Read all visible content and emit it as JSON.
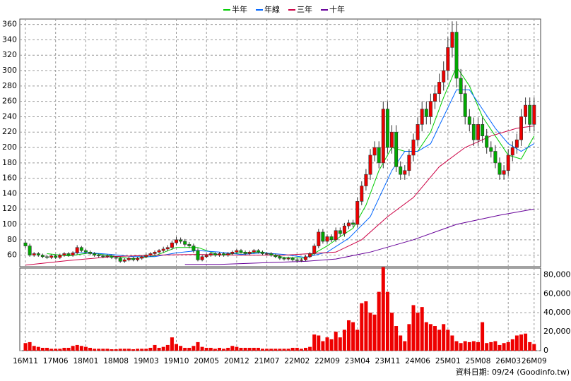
{
  "chart_data": {
    "type": "candlestick",
    "legend_position": "top",
    "grid": true,
    "categories": [
      "16M11",
      null,
      null,
      null,
      null,
      null,
      null,
      "17M06",
      null,
      null,
      null,
      null,
      null,
      null,
      "18M01",
      null,
      null,
      null,
      null,
      null,
      null,
      "18M08",
      null,
      null,
      null,
      null,
      null,
      null,
      "19M03",
      null,
      null,
      null,
      null,
      null,
      null,
      "19M10",
      null,
      null,
      null,
      null,
      null,
      null,
      "20M05",
      null,
      null,
      null,
      null,
      null,
      null,
      "20M12",
      null,
      null,
      null,
      null,
      null,
      null,
      "21M07",
      null,
      null,
      null,
      null,
      null,
      null,
      "22M02",
      null,
      null,
      null,
      null,
      null,
      null,
      "22M09",
      null,
      null,
      null,
      null,
      null,
      null,
      "23M04",
      null,
      null,
      null,
      null,
      null,
      null,
      "23M11",
      null,
      null,
      null,
      null,
      null,
      null,
      "24M06",
      null,
      null,
      null,
      null,
      null,
      null,
      "25M01",
      null,
      null,
      null,
      null,
      null,
      null,
      "25M08",
      null,
      null,
      null,
      null,
      null,
      null,
      "26M03",
      null,
      null,
      null,
      null,
      null,
      "26M09"
    ],
    "open": [
      76,
      72,
      60,
      62,
      60,
      58,
      57,
      59,
      57,
      60,
      62,
      60,
      63,
      70,
      66,
      64,
      62,
      60,
      59,
      58,
      59,
      57,
      56,
      52,
      54,
      56,
      54,
      56,
      58,
      60,
      62,
      64,
      66,
      68,
      70,
      76,
      80,
      78,
      74,
      72,
      66,
      54,
      58,
      60,
      62,
      60,
      62,
      60,
      62,
      64,
      66,
      64,
      62,
      64,
      66,
      64,
      62,
      62,
      60,
      58,
      56,
      55,
      56,
      54,
      53,
      54,
      58,
      62,
      72,
      90,
      78,
      84,
      80,
      92,
      88,
      98,
      102,
      100,
      130,
      150,
      165,
      190,
      200,
      180,
      250,
      200,
      220,
      175,
      165,
      170,
      190,
      210,
      230,
      250,
      240,
      260,
      270,
      285,
      300,
      330,
      350,
      290,
      270,
      240,
      230,
      210,
      230,
      215,
      200,
      195,
      180,
      165,
      170,
      190,
      200,
      210,
      240,
      255,
      230
    ],
    "high": [
      79,
      75,
      64,
      64,
      62,
      60,
      61,
      61,
      62,
      64,
      64,
      65,
      73,
      72,
      68,
      66,
      64,
      62,
      61,
      61,
      61,
      59,
      58,
      56,
      58,
      58,
      58,
      60,
      62,
      64,
      66,
      68,
      71,
      73,
      79,
      84,
      83,
      81,
      77,
      75,
      69,
      60,
      62,
      64,
      64,
      64,
      64,
      64,
      66,
      68,
      68,
      66,
      66,
      68,
      68,
      66,
      64,
      64,
      62,
      60,
      58,
      58,
      58,
      56,
      56,
      60,
      64,
      75,
      94,
      94,
      87,
      87,
      96,
      96,
      102,
      106,
      106,
      135,
      156,
      172,
      198,
      208,
      208,
      260,
      260,
      229,
      229,
      182,
      177,
      198,
      218,
      239,
      260,
      260,
      270,
      281,
      296,
      312,
      343,
      364,
      364,
      302,
      281,
      250,
      239,
      239,
      239,
      224,
      208,
      203,
      187,
      177,
      198,
      208,
      218,
      250,
      265,
      265,
      265
    ],
    "low": [
      69,
      58,
      58,
      58,
      56,
      55,
      55,
      55,
      55,
      58,
      58,
      58,
      61,
      64,
      62,
      60,
      58,
      57,
      56,
      56,
      55,
      54,
      50,
      50,
      52,
      52,
      52,
      54,
      56,
      58,
      60,
      62,
      63,
      65,
      67,
      73,
      75,
      71,
      69,
      63,
      52,
      52,
      56,
      58,
      58,
      58,
      58,
      58,
      60,
      62,
      62,
      60,
      60,
      62,
      62,
      60,
      60,
      58,
      56,
      54,
      53,
      53,
      52,
      50,
      51,
      52,
      56,
      60,
      69,
      75,
      75,
      77,
      77,
      84,
      84,
      94,
      96,
      96,
      125,
      144,
      158,
      182,
      173,
      173,
      192,
      192,
      168,
      158,
      158,
      163,
      182,
      202,
      221,
      230,
      230,
      250,
      259,
      274,
      288,
      317,
      278,
      259,
      230,
      221,
      202,
      202,
      206,
      192,
      187,
      173,
      158,
      158,
      163,
      182,
      192,
      202,
      230,
      221,
      221
    ],
    "close": [
      72,
      60,
      62,
      60,
      58,
      57,
      59,
      57,
      60,
      62,
      60,
      63,
      70,
      66,
      64,
      62,
      60,
      59,
      58,
      59,
      57,
      56,
      52,
      54,
      56,
      54,
      56,
      58,
      60,
      62,
      64,
      66,
      68,
      70,
      76,
      80,
      78,
      74,
      72,
      66,
      54,
      58,
      60,
      62,
      60,
      62,
      60,
      62,
      64,
      66,
      64,
      62,
      64,
      66,
      64,
      62,
      62,
      60,
      58,
      56,
      55,
      56,
      54,
      53,
      54,
      58,
      62,
      72,
      90,
      78,
      84,
      80,
      92,
      88,
      98,
      102,
      100,
      130,
      150,
      165,
      190,
      200,
      180,
      250,
      200,
      220,
      175,
      165,
      170,
      190,
      210,
      230,
      250,
      240,
      260,
      270,
      285,
      300,
      330,
      350,
      290,
      270,
      240,
      230,
      210,
      230,
      215,
      200,
      195,
      180,
      165,
      170,
      190,
      200,
      210,
      240,
      255,
      230,
      255
    ],
    "up_color": "#ee0000",
    "down_color": "#00aa00",
    "ylim": [
      45,
      367
    ],
    "yticks": [
      60,
      80,
      100,
      120,
      140,
      160,
      180,
      200,
      220,
      240,
      260,
      280,
      300,
      320,
      340,
      360
    ],
    "series": [
      {
        "name": "半年",
        "color": "#00cc00",
        "x": [
          5,
          10,
          15,
          20,
          25,
          30,
          35,
          40,
          45,
          50,
          55,
          60,
          65,
          70,
          73,
          76,
          79,
          82,
          85,
          88,
          91,
          94,
          97,
          100,
          103,
          106,
          109,
          112,
          115,
          118
        ],
        "values": [
          62,
          59,
          63,
          59,
          55,
          59,
          70,
          70,
          60,
          63,
          64,
          57,
          56,
          72,
          84,
          95,
          125,
          170,
          200,
          195,
          195,
          220,
          265,
          305,
          280,
          240,
          215,
          190,
          185,
          215
        ]
      },
      {
        "name": "年線",
        "color": "#0066ff",
        "x": [
          11,
          15,
          20,
          25,
          30,
          35,
          40,
          45,
          50,
          55,
          60,
          65,
          70,
          75,
          80,
          85,
          88,
          91,
          94,
          97,
          100,
          103,
          106,
          109,
          112,
          115,
          118
        ],
        "values": [
          63,
          63,
          61,
          58,
          58,
          63,
          66,
          64,
          61,
          63,
          61,
          57,
          64,
          82,
          110,
          170,
          195,
          195,
          205,
          240,
          275,
          275,
          250,
          225,
          205,
          195,
          205
        ]
      },
      {
        "name": "三年",
        "color": "#cc0044",
        "x": [
          0,
          10,
          20,
          30,
          40,
          50,
          60,
          66,
          72,
          78,
          84,
          90,
          96,
          102,
          108,
          114,
          118
        ],
        "values": [
          47,
          53,
          58,
          60,
          61,
          60,
          60,
          62,
          64,
          80,
          110,
          135,
          175,
          200,
          215,
          225,
          228
        ]
      },
      {
        "name": "十年",
        "color": "#660099",
        "x": [
          37,
          45,
          55,
          65,
          72,
          80,
          90,
          100,
          110,
          118
        ],
        "values": [
          48,
          48,
          50,
          52,
          55,
          64,
          80,
          100,
          112,
          120
        ]
      }
    ],
    "volume": {
      "color": "#ee0000",
      "values": [
        8000,
        9000,
        5000,
        4000,
        3000,
        3000,
        2000,
        2000,
        2000,
        3000,
        3000,
        5000,
        6000,
        5000,
        4000,
        3000,
        2000,
        2000,
        2000,
        2000,
        1500,
        1500,
        2000,
        2000,
        2000,
        1500,
        2000,
        2000,
        2000,
        3000,
        6000,
        3000,
        4000,
        6000,
        14000,
        7000,
        5000,
        3000,
        3000,
        5000,
        9000,
        4000,
        3000,
        3000,
        2000,
        3000,
        2000,
        3000,
        5000,
        4000,
        3000,
        3000,
        3000,
        3000,
        3000,
        2000,
        2000,
        2000,
        2000,
        2000,
        2000,
        2000,
        3000,
        3000,
        2000,
        3000,
        4000,
        17000,
        16000,
        10000,
        14000,
        12000,
        20000,
        14000,
        22000,
        32000,
        30000,
        22000,
        50000,
        52000,
        40000,
        38000,
        62000,
        88000,
        62000,
        40000,
        26000,
        16000,
        10000,
        28000,
        48000,
        40000,
        46000,
        30000,
        28000,
        26000,
        22000,
        28000,
        22000,
        16000,
        10000,
        8000,
        10000,
        9000,
        10000,
        9000,
        30000,
        8000,
        9000,
        10000,
        6000,
        8000,
        9000,
        12000,
        16000,
        17000,
        18000,
        9000,
        7000
      ],
      "ylim": [
        0,
        87000
      ],
      "yticks": [
        0,
        {
          "value": 20000,
          "label": "20,000"
        },
        {
          "value": 40000,
          "label": "40,000"
        },
        {
          "value": 60000,
          "label": "60,000"
        },
        {
          "value": 80000,
          "label": "80,000"
        }
      ]
    },
    "source": "資料日期: 09/24 (Goodinfo.tw)"
  }
}
